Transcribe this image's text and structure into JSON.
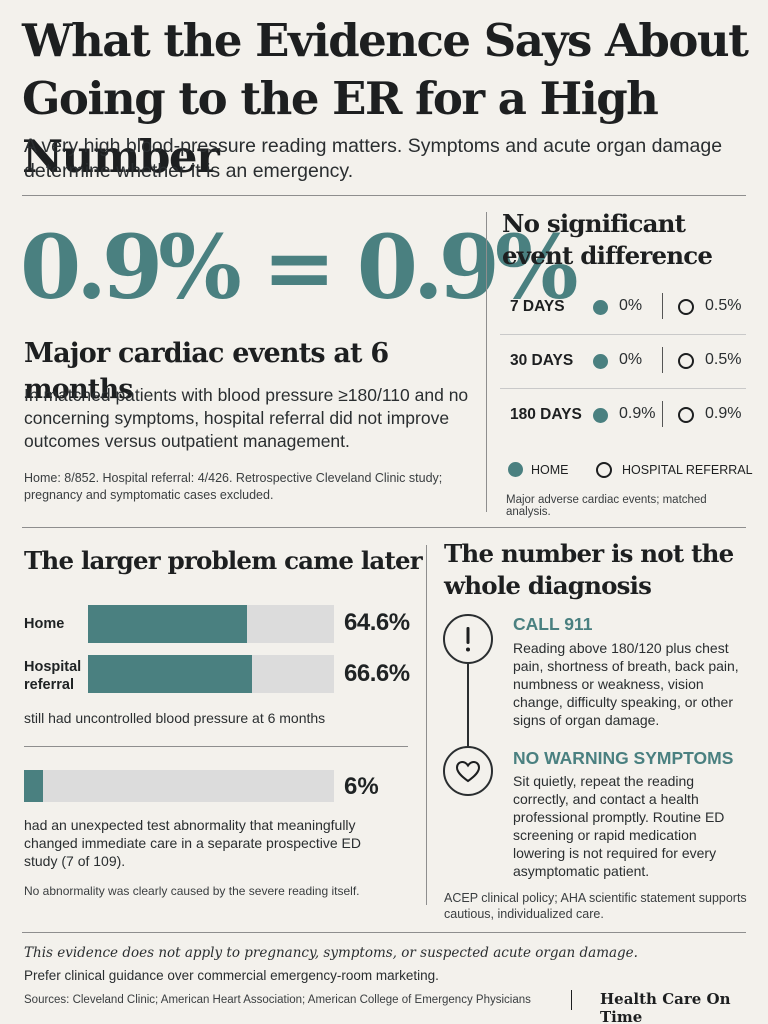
{
  "header": {
    "title": "What the Evidence Says About Going to the ER for a High Number",
    "subtitle": "A very high blood-pressure reading matters. Symptoms and acute organ damage determine whether it is an emergency."
  },
  "stat": {
    "big": "0.9% = 0.9%",
    "heading": "Major cardiac events at 6 months",
    "body": "In matched patients with blood pressure ≥180/110 and no concerning symptoms, hospital referral did not improve outcomes versus outpatient management.",
    "note": "Home: 8/852. Hospital referral: 4/426. Retrospective Cleveland Clinic study; pregnancy and symptomatic cases excluded."
  },
  "events": {
    "heading": "No significant event difference",
    "rows": [
      {
        "day": "7 DAYS",
        "home": "0%",
        "hospital": "0.5%"
      },
      {
        "day": "30 DAYS",
        "home": "0%",
        "hospital": "0.5%"
      },
      {
        "day": "180 DAYS",
        "home": "0.9%",
        "hospital": "0.9%"
      }
    ],
    "legend_home": "HOME",
    "legend_hospital": "HOSPITAL REFERRAL",
    "note": "Major adverse cardiac events; matched analysis."
  },
  "later": {
    "heading": "The larger problem came later",
    "bars": [
      {
        "label": "Home",
        "value_text": "64.6%",
        "value": 64.6
      },
      {
        "label": "Hospital referral",
        "value_text": "66.6%",
        "value": 66.6
      }
    ],
    "bars_caption": "still had uncontrolled blood pressure at 6 months",
    "abnormal": {
      "value_text": "6%",
      "value": 6
    },
    "abnormal_caption": "had an unexpected test abnormality that meaningfully changed immediate care in a separate prospective ED study (7 of 109).",
    "abnormal_note": "No abnormality was clearly caused by the severe reading itself."
  },
  "diagnosis": {
    "heading": "The number is not the whole diagnosis",
    "call_title": "CALL 911",
    "call_body": "Reading above 180/120 plus chest pain, shortness of breath, back pain, numbness or weakness, vision change, difficulty speaking, or other signs of organ damage.",
    "nowarn_title": "NO WARNING SYMPTOMS",
    "nowarn_body": "Sit quietly, repeat the reading correctly, and contact a health professional promptly. Routine ED screening or rapid medication lowering is not required for every asymptomatic patient.",
    "note": "ACEP clinical policy; AHA scientific statement supports cautious, individualized care.",
    "call_icon": "exclamation-icon",
    "nowarn_icon": "heart-icon"
  },
  "footer": {
    "disclaimer": "This evidence does not apply to pregnancy, symptoms, or suspected acute organ damage.",
    "guidance": "Prefer clinical guidance over commercial emergency-room marketing.",
    "sources": "Sources:  Cleveland Clinic; American Heart Association; American College of Emergency Physicians",
    "brand": "Health Care On Time"
  },
  "colors": {
    "accent": "#4a8080",
    "track": "#dcdcdc",
    "background": "#f3f1ec"
  }
}
